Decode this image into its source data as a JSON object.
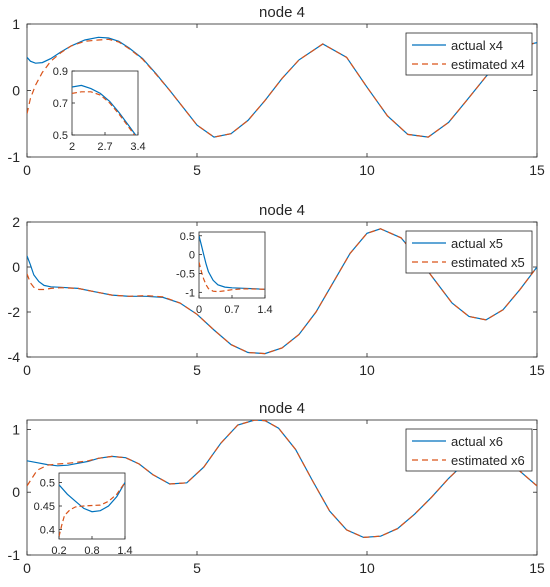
{
  "chart_data": [
    {
      "type": "line",
      "title": "node 4",
      "xlim": [
        0,
        15
      ],
      "ylim": [
        -1,
        1
      ],
      "x_ticks": [
        0,
        5,
        10,
        15
      ],
      "y_ticks": [
        -1,
        0,
        1
      ],
      "grid": false,
      "legend_position": "top-right",
      "series": [
        {
          "name": "actual x4",
          "style": "solid",
          "color": "#0072BD",
          "x": [
            0,
            0.1,
            0.25,
            0.45,
            0.7,
            1.0,
            1.3,
            1.7,
            2.1,
            2.4,
            2.7,
            3.0,
            3.4,
            3.8,
            4.2,
            4.6,
            5.0,
            5.5,
            6.0,
            6.5,
            7.0,
            7.5,
            8.0,
            8.7,
            9.4,
            10.0,
            10.6,
            11.2,
            11.8,
            12.4,
            12.9,
            13.5,
            14.0,
            14.5,
            15.0
          ],
          "y": [
            0.5,
            0.44,
            0.41,
            0.42,
            0.48,
            0.58,
            0.67,
            0.76,
            0.8,
            0.79,
            0.74,
            0.64,
            0.48,
            0.25,
            0.0,
            -0.26,
            -0.52,
            -0.7,
            -0.65,
            -0.45,
            -0.15,
            0.18,
            0.46,
            0.7,
            0.5,
            0.05,
            -0.38,
            -0.66,
            -0.7,
            -0.48,
            -0.17,
            0.21,
            0.48,
            0.66,
            0.72
          ]
        },
        {
          "name": "estimated x4",
          "style": "dashed",
          "color": "#D95319",
          "x": [
            0,
            0.1,
            0.25,
            0.45,
            0.7,
            1.0,
            1.3,
            1.7,
            2.1,
            2.4,
            2.7,
            3.0,
            3.4,
            3.8,
            4.2,
            4.6,
            5.0,
            5.5,
            6.0,
            6.5,
            7.0,
            7.5,
            8.0,
            8.7,
            9.4,
            10.0,
            10.6,
            11.2,
            11.8,
            12.4,
            12.9,
            13.5,
            14.0,
            14.5,
            15.0
          ],
          "y": [
            -0.35,
            -0.12,
            0.08,
            0.27,
            0.44,
            0.57,
            0.67,
            0.74,
            0.76,
            0.77,
            0.73,
            0.63,
            0.47,
            0.24,
            0.0,
            -0.26,
            -0.52,
            -0.7,
            -0.65,
            -0.45,
            -0.15,
            0.18,
            0.46,
            0.7,
            0.5,
            0.05,
            -0.38,
            -0.66,
            -0.7,
            -0.48,
            -0.17,
            0.21,
            0.48,
            0.66,
            0.72
          ]
        }
      ],
      "inset": {
        "xlim": [
          2,
          3.4
        ],
        "ylim": [
          0.5,
          0.9
        ],
        "x_ticks": [
          "2",
          "2.7",
          "3.4"
        ],
        "y_ticks": [
          "0.9",
          "0.7",
          "0.5"
        ],
        "y_tick_values": [
          0.9,
          0.7,
          0.5
        ],
        "series": [
          {
            "name": "actual x4",
            "x": [
              2.0,
              2.2,
              2.4,
              2.6,
              2.8,
              3.0,
              3.2,
              3.4
            ],
            "y": [
              0.8,
              0.81,
              0.79,
              0.76,
              0.71,
              0.64,
              0.56,
              0.48
            ]
          },
          {
            "name": "estimated x4",
            "x": [
              2.0,
              2.2,
              2.4,
              2.6,
              2.8,
              3.0,
              3.2,
              3.4
            ],
            "y": [
              0.76,
              0.77,
              0.77,
              0.75,
              0.7,
              0.63,
              0.55,
              0.47
            ]
          }
        ]
      }
    },
    {
      "type": "line",
      "title": "node 4",
      "xlim": [
        0,
        15
      ],
      "ylim": [
        -4,
        2
      ],
      "x_ticks": [
        0,
        5,
        10,
        15
      ],
      "y_ticks": [
        -4,
        -2,
        0,
        2
      ],
      "grid": false,
      "legend_position": "top-right",
      "series": [
        {
          "name": "actual x5",
          "style": "solid",
          "color": "#0072BD",
          "x": [
            0,
            0.1,
            0.2,
            0.35,
            0.5,
            0.7,
            1.0,
            1.5,
            2.0,
            2.5,
            3.0,
            3.5,
            4.0,
            4.5,
            5.0,
            5.5,
            6.0,
            6.5,
            7.0,
            7.5,
            8.0,
            8.5,
            9.0,
            9.5,
            10.0,
            10.4,
            11.0,
            11.5,
            12.0,
            12.5,
            13.0,
            13.5,
            14.0,
            14.5,
            15.0
          ],
          "y": [
            0.5,
            0.1,
            -0.35,
            -0.65,
            -0.82,
            -0.88,
            -0.9,
            -0.95,
            -1.1,
            -1.25,
            -1.3,
            -1.3,
            -1.35,
            -1.6,
            -2.1,
            -2.8,
            -3.45,
            -3.8,
            -3.85,
            -3.6,
            -3.0,
            -2.0,
            -0.7,
            0.6,
            1.5,
            1.7,
            1.3,
            0.4,
            -0.6,
            -1.6,
            -2.2,
            -2.35,
            -1.9,
            -1.0,
            0.0
          ]
        },
        {
          "name": "estimated x5",
          "style": "dashed",
          "color": "#D95319",
          "x": [
            0,
            0.1,
            0.2,
            0.35,
            0.5,
            0.7,
            1.0,
            1.5,
            2.0,
            2.5,
            3.0,
            3.5,
            4.0,
            4.5,
            5.0,
            5.5,
            6.0,
            6.5,
            7.0,
            7.5,
            8.0,
            8.5,
            9.0,
            9.5,
            10.0,
            10.4,
            11.0,
            11.5,
            12.0,
            12.5,
            13.0,
            13.5,
            14.0,
            14.5,
            15.0
          ],
          "y": [
            -0.3,
            -0.7,
            -0.9,
            -1.0,
            -1.0,
            -0.95,
            -0.92,
            -0.95,
            -1.1,
            -1.25,
            -1.3,
            -1.27,
            -1.33,
            -1.6,
            -2.1,
            -2.8,
            -3.45,
            -3.8,
            -3.85,
            -3.6,
            -3.0,
            -2.0,
            -0.7,
            0.6,
            1.5,
            1.7,
            1.3,
            0.4,
            -0.6,
            -1.6,
            -2.2,
            -2.35,
            -1.9,
            -1.0,
            0.0
          ]
        }
      ],
      "inset": {
        "xlim": [
          0,
          1.4
        ],
        "ylim": [
          -1.15,
          0.6
        ],
        "x_ticks": [
          "0",
          "0.7",
          "1.4"
        ],
        "y_ticks": [
          "0.5",
          "0",
          "-0.5",
          "-1"
        ],
        "y_tick_values": [
          0.5,
          0,
          -0.5,
          -1
        ],
        "series": [
          {
            "name": "actual x5",
            "x": [
              0,
              0.05,
              0.1,
              0.15,
              0.2,
              0.3,
              0.4,
              0.55,
              0.7,
              0.9,
              1.1,
              1.4
            ],
            "y": [
              0.5,
              0.25,
              0.0,
              -0.25,
              -0.45,
              -0.68,
              -0.8,
              -0.86,
              -0.88,
              -0.89,
              -0.9,
              -0.92
            ]
          },
          {
            "name": "estimated x5",
            "x": [
              0,
              0.05,
              0.1,
              0.15,
              0.2,
              0.3,
              0.4,
              0.55,
              0.7,
              0.9,
              1.1,
              1.4
            ],
            "y": [
              -0.2,
              -0.45,
              -0.65,
              -0.8,
              -0.9,
              -0.97,
              -0.98,
              -0.96,
              -0.93,
              -0.91,
              -0.91,
              -0.92
            ]
          }
        ]
      }
    },
    {
      "type": "line",
      "title": "node 4",
      "xlim": [
        0,
        15
      ],
      "ylim": [
        -1,
        1.15
      ],
      "x_ticks": [
        0,
        5,
        10,
        15
      ],
      "y_ticks": [
        -1,
        0,
        1
      ],
      "grid": false,
      "legend_position": "top-right",
      "series": [
        {
          "name": "actual x6",
          "style": "solid",
          "color": "#0072BD",
          "x": [
            0,
            0.3,
            0.6,
            0.9,
            1.2,
            1.5,
            1.8,
            2.1,
            2.5,
            2.9,
            3.3,
            3.7,
            4.2,
            4.7,
            5.2,
            5.7,
            6.2,
            6.7,
            7.0,
            7.4,
            7.9,
            8.4,
            8.9,
            9.4,
            9.9,
            10.4,
            10.9,
            11.4,
            11.9,
            12.4,
            12.9,
            13.4,
            13.9,
            14.4,
            15.0
          ],
          "y": [
            0.5,
            0.47,
            0.44,
            0.42,
            0.43,
            0.46,
            0.49,
            0.54,
            0.57,
            0.55,
            0.45,
            0.28,
            0.13,
            0.15,
            0.4,
            0.78,
            1.07,
            1.15,
            1.14,
            1.02,
            0.68,
            0.18,
            -0.3,
            -0.6,
            -0.72,
            -0.7,
            -0.58,
            -0.35,
            -0.08,
            0.22,
            0.48,
            0.61,
            0.6,
            0.38,
            0.1
          ]
        },
        {
          "name": "estimated x6",
          "style": "dashed",
          "color": "#D95319",
          "x": [
            0,
            0.3,
            0.6,
            0.9,
            1.2,
            1.5,
            1.8,
            2.1,
            2.5,
            2.9,
            3.3,
            3.7,
            4.2,
            4.7,
            5.2,
            5.7,
            6.2,
            6.7,
            7.0,
            7.4,
            7.9,
            8.4,
            8.9,
            9.4,
            9.9,
            10.4,
            10.9,
            11.4,
            11.9,
            12.4,
            12.9,
            13.4,
            13.9,
            14.4,
            15.0
          ],
          "y": [
            0.1,
            0.35,
            0.43,
            0.45,
            0.46,
            0.48,
            0.5,
            0.54,
            0.57,
            0.55,
            0.45,
            0.28,
            0.13,
            0.15,
            0.4,
            0.78,
            1.07,
            1.15,
            1.14,
            1.02,
            0.68,
            0.18,
            -0.3,
            -0.6,
            -0.72,
            -0.7,
            -0.58,
            -0.35,
            -0.08,
            0.22,
            0.48,
            0.61,
            0.6,
            0.38,
            0.1
          ]
        }
      ],
      "inset": {
        "xlim": [
          0.2,
          1.4
        ],
        "ylim": [
          0.38,
          0.52
        ],
        "x_ticks": [
          "0.2",
          "0.8",
          "1.4"
        ],
        "y_ticks": [
          "0.5",
          "0.45",
          "0.4"
        ],
        "y_tick_values": [
          0.5,
          0.45,
          0.4
        ],
        "series": [
          {
            "name": "actual x6",
            "x": [
              0.2,
              0.35,
              0.5,
              0.65,
              0.8,
              0.95,
              1.1,
              1.25,
              1.4
            ],
            "y": [
              0.495,
              0.475,
              0.46,
              0.445,
              0.438,
              0.44,
              0.45,
              0.47,
              0.5
            ]
          },
          {
            "name": "estimated x6",
            "x": [
              0.2,
              0.25,
              0.3,
              0.4,
              0.5,
              0.65,
              0.8,
              0.95,
              1.1,
              1.25,
              1.4
            ],
            "y": [
              0.385,
              0.41,
              0.43,
              0.442,
              0.448,
              0.45,
              0.451,
              0.452,
              0.46,
              0.475,
              0.5
            ]
          }
        ]
      }
    }
  ]
}
